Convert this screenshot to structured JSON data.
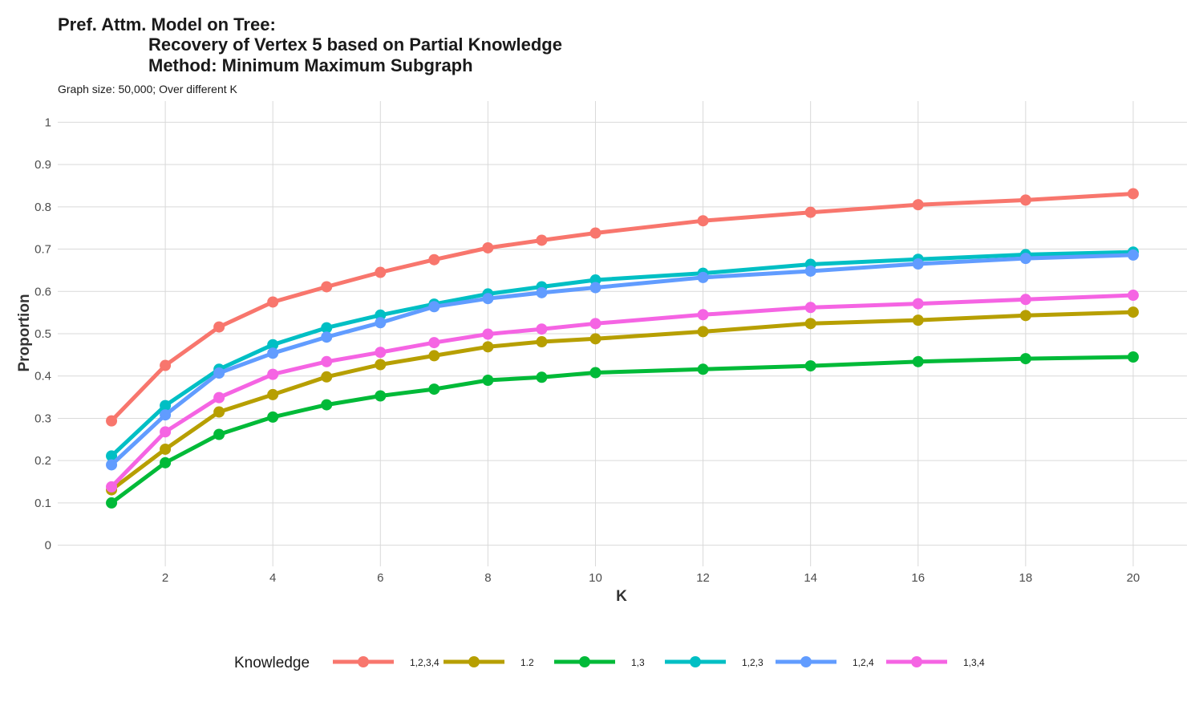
{
  "chart_data": {
    "type": "line",
    "title_lines": [
      "Pref. Attm. Model on Tree:",
      "Recovery of Vertex 5 based on Partial Knowledge",
      "Method: Minimum Maximum Subgraph"
    ],
    "subtitle": "Graph size: 50,000; Over different K",
    "xlabel": "K",
    "ylabel": "Proportion",
    "xlim": [
      0,
      21
    ],
    "ylim": [
      -0.05,
      1.05
    ],
    "x_ticks": [
      2,
      4,
      6,
      8,
      10,
      12,
      14,
      16,
      18,
      20
    ],
    "y_ticks": [
      0,
      0.1,
      0.2,
      0.3,
      0.4,
      0.5,
      0.6,
      0.7,
      0.8,
      0.9,
      1
    ],
    "y_tick_labels": [
      "0",
      "0.1",
      "0.2",
      "0.3",
      "0.4",
      "0.5",
      "0.6",
      "0.7",
      "0.8",
      "0.9",
      "1"
    ],
    "x_tick_labels": [
      "2",
      "4",
      "6",
      "8",
      "10",
      "12",
      "14",
      "16",
      "18",
      "20"
    ],
    "grid": true,
    "legend": {
      "title": "Knowledge",
      "position": "bottom"
    },
    "x": [
      1,
      2,
      3,
      4,
      5,
      6,
      7,
      8,
      9,
      10,
      12,
      14,
      16,
      18,
      20
    ],
    "series": [
      {
        "name": "1,2,3,4",
        "color": "#F8766D",
        "values": [
          0.294,
          0.425,
          0.516,
          0.575,
          0.611,
          0.645,
          0.675,
          0.703,
          0.721,
          0.738,
          0.767,
          0.787,
          0.805,
          0.816,
          0.831
        ]
      },
      {
        "name": "1.2",
        "color": "#B79F00",
        "values": [
          0.131,
          0.227,
          0.315,
          0.356,
          0.398,
          0.427,
          0.448,
          0.469,
          0.481,
          0.488,
          0.505,
          0.524,
          0.532,
          0.543,
          0.551
        ]
      },
      {
        "name": "1,3",
        "color": "#00BA38",
        "values": [
          0.1,
          0.195,
          0.262,
          0.303,
          0.332,
          0.353,
          0.369,
          0.39,
          0.397,
          0.408,
          0.416,
          0.424,
          0.434,
          0.441,
          0.445
        ]
      },
      {
        "name": "1,2,3",
        "color": "#00BFC4",
        "values": [
          0.211,
          0.33,
          0.416,
          0.474,
          0.514,
          0.544,
          0.57,
          0.594,
          0.611,
          0.627,
          0.643,
          0.664,
          0.676,
          0.687,
          0.693
        ]
      },
      {
        "name": "1,2,4",
        "color": "#619CFF",
        "values": [
          0.19,
          0.308,
          0.407,
          0.454,
          0.492,
          0.526,
          0.564,
          0.583,
          0.597,
          0.609,
          0.633,
          0.648,
          0.665,
          0.678,
          0.686
        ]
      },
      {
        "name": "1,3,4",
        "color": "#F564E3",
        "values": [
          0.138,
          0.268,
          0.349,
          0.404,
          0.434,
          0.456,
          0.479,
          0.499,
          0.511,
          0.524,
          0.545,
          0.562,
          0.571,
          0.581,
          0.591
        ]
      }
    ]
  }
}
